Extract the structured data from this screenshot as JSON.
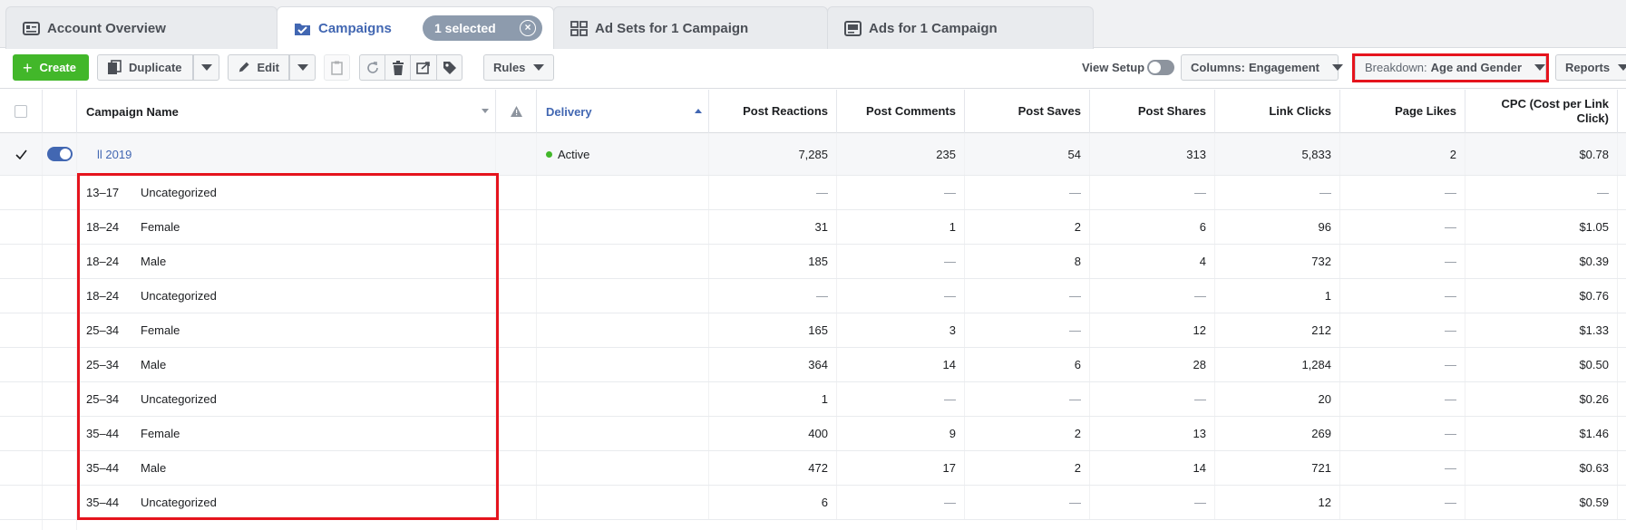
{
  "tabs": [
    {
      "label": "Account Overview",
      "icon": "account-overview-icon",
      "active": false
    },
    {
      "label": "Campaigns",
      "icon": "campaign-folder-icon",
      "active": true
    },
    {
      "label": "Ad Sets for 1 Campaign",
      "icon": "ad-sets-grid-icon",
      "active": false
    },
    {
      "label": "Ads for 1 Campaign",
      "icon": "ad-icon",
      "active": false
    }
  ],
  "selection_pill": "1 selected",
  "toolbar": {
    "create": "Create",
    "duplicate": "Duplicate",
    "edit": "Edit",
    "rules": "Rules",
    "view_setup": "View Setup",
    "columns_label": "Columns:",
    "columns_value": "Engagement",
    "breakdown_label": "Breakdown:",
    "breakdown_value": "Age and Gender",
    "reports": "Reports"
  },
  "columns": {
    "campaign_name": "Campaign Name",
    "delivery": "Delivery",
    "post_reactions": "Post Reactions",
    "post_comments": "Post Comments",
    "post_saves": "Post Saves",
    "post_shares": "Post Shares",
    "link_clicks": "Link Clicks",
    "page_likes": "Page Likes",
    "cpc": "CPC (Cost per Link Click)"
  },
  "campaign_row": {
    "name": "ll 2019",
    "delivery": "Active",
    "post_reactions": "7,285",
    "post_comments": "235",
    "post_saves": "54",
    "post_shares": "313",
    "link_clicks": "5,833",
    "page_likes": "2",
    "cpc": "$0.78"
  },
  "breakdown_rows": [
    {
      "age": "13–17",
      "gender": "Uncategorized",
      "post_reactions": "—",
      "post_comments": "—",
      "post_saves": "—",
      "post_shares": "—",
      "link_clicks": "—",
      "page_likes": "—",
      "cpc": "—"
    },
    {
      "age": "18–24",
      "gender": "Female",
      "post_reactions": "31",
      "post_comments": "1",
      "post_saves": "2",
      "post_shares": "6",
      "link_clicks": "96",
      "page_likes": "—",
      "cpc": "$1.05"
    },
    {
      "age": "18–24",
      "gender": "Male",
      "post_reactions": "185",
      "post_comments": "—",
      "post_saves": "8",
      "post_shares": "4",
      "link_clicks": "732",
      "page_likes": "—",
      "cpc": "$0.39"
    },
    {
      "age": "18–24",
      "gender": "Uncategorized",
      "post_reactions": "—",
      "post_comments": "—",
      "post_saves": "—",
      "post_shares": "—",
      "link_clicks": "1",
      "page_likes": "—",
      "cpc": "$0.76"
    },
    {
      "age": "25–34",
      "gender": "Female",
      "post_reactions": "165",
      "post_comments": "3",
      "post_saves": "—",
      "post_shares": "12",
      "link_clicks": "212",
      "page_likes": "—",
      "cpc": "$1.33"
    },
    {
      "age": "25–34",
      "gender": "Male",
      "post_reactions": "364",
      "post_comments": "14",
      "post_saves": "6",
      "post_shares": "28",
      "link_clicks": "1,284",
      "page_likes": "—",
      "cpc": "$0.50"
    },
    {
      "age": "25–34",
      "gender": "Uncategorized",
      "post_reactions": "1",
      "post_comments": "—",
      "post_saves": "—",
      "post_shares": "—",
      "link_clicks": "20",
      "page_likes": "—",
      "cpc": "$0.26"
    },
    {
      "age": "35–44",
      "gender": "Female",
      "post_reactions": "400",
      "post_comments": "9",
      "post_saves": "2",
      "post_shares": "13",
      "link_clicks": "269",
      "page_likes": "—",
      "cpc": "$1.46"
    },
    {
      "age": "35–44",
      "gender": "Male",
      "post_reactions": "472",
      "post_comments": "17",
      "post_saves": "2",
      "post_shares": "14",
      "link_clicks": "721",
      "page_likes": "—",
      "cpc": "$0.63"
    },
    {
      "age": "35–44",
      "gender": "Uncategorized",
      "post_reactions": "6",
      "post_comments": "—",
      "post_saves": "—",
      "post_shares": "—",
      "link_clicks": "12",
      "page_likes": "—",
      "cpc": "$0.59"
    }
  ],
  "colors": {
    "accent": "#4267b2",
    "create_green": "#42b72a",
    "highlight_red": "#e5141d",
    "active_status": "#42b72a"
  }
}
